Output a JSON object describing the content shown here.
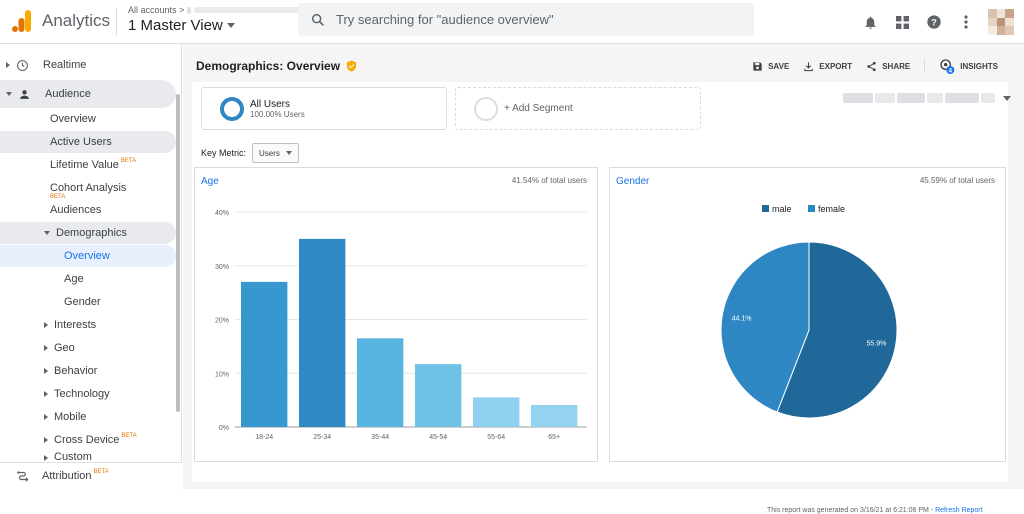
{
  "topbar": {
    "app_title": "Analytics",
    "account_crumb": "All accounts >",
    "view_name": "1 Master View",
    "search_placeholder": "Try searching for \"audience overview\"",
    "icons": [
      "bell-icon",
      "apps-icon",
      "help-icon",
      "more-vert-icon"
    ]
  },
  "sidebar": {
    "realtime": "Realtime",
    "audience": "Audience",
    "items": [
      {
        "label": "Overview"
      },
      {
        "label": "Active Users"
      },
      {
        "label": "Lifetime Value",
        "badge": "BETA"
      },
      {
        "label": "Cohort Analysis",
        "badge": "BETA"
      },
      {
        "label": "Audiences"
      }
    ],
    "demographics": "Demographics",
    "demo_items": [
      "Overview",
      "Age",
      "Gender"
    ],
    "collapsed_items": [
      {
        "label": "Interests"
      },
      {
        "label": "Geo"
      },
      {
        "label": "Behavior"
      },
      {
        "label": "Technology"
      },
      {
        "label": "Mobile"
      },
      {
        "label": "Cross Device",
        "badge": "BETA"
      },
      {
        "label": "Custom"
      }
    ],
    "attribution": "Attribution",
    "attribution_badge": "BETA"
  },
  "page": {
    "title": "Demographics: Overview",
    "actions": {
      "save": "SAVE",
      "export": "EXPORT",
      "share": "SHARE",
      "insights": "INSIGHTS",
      "insights_count": "4"
    }
  },
  "segments": {
    "all_users": "All Users",
    "all_users_pct": "100.00% Users",
    "add_segment": "+ Add Segment"
  },
  "key_metric": {
    "label": "Key Metric:",
    "value": "Users"
  },
  "age_panel": {
    "title": "Age",
    "pct_total": "41.54% of total users"
  },
  "gender_panel": {
    "title": "Gender",
    "pct_total": "45.59% of total users"
  },
  "footer": {
    "text": "This report was generated on 3/16/21 at 6:21:06 PM - ",
    "link": "Refresh Report"
  },
  "colors": {
    "accent": "#1a73e8",
    "bar_dark": "#2f8ac4",
    "male": "#21689a",
    "female": "#2e87c3"
  },
  "chart_data": [
    {
      "type": "bar",
      "title": "Age",
      "categories": [
        "18-24",
        "25-34",
        "35-44",
        "45-54",
        "55-64",
        "65+"
      ],
      "values": [
        27,
        35,
        16.5,
        11.7,
        5.5,
        4.1
      ],
      "ylim": [
        0,
        40
      ],
      "yticks": [
        "0%",
        "10%",
        "20%",
        "30%",
        "40%"
      ],
      "bar_colors": [
        "#3797cf",
        "#2f8ac4",
        "#58b4e0",
        "#6fc1e6",
        "#8ed0ee",
        "#94d3f0"
      ],
      "grid": true
    },
    {
      "type": "pie",
      "title": "Gender",
      "categories": [
        "male",
        "female"
      ],
      "values": [
        55.9,
        44.1
      ],
      "labels": [
        "55.9%",
        "44.1%"
      ],
      "colors": [
        "#21689a",
        "#2e87c3"
      ],
      "legend_position": "top"
    }
  ]
}
